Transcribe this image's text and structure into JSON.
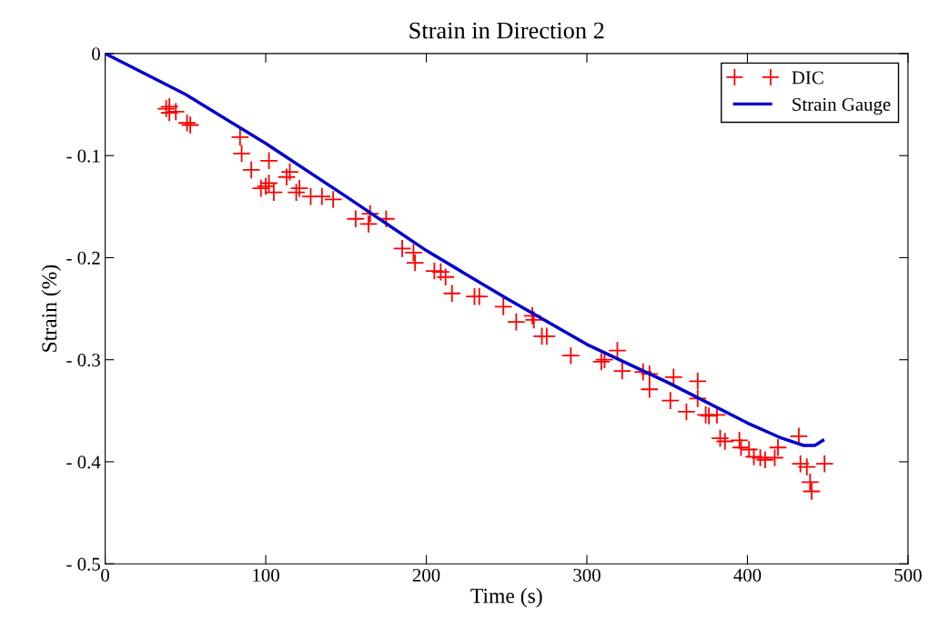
{
  "chart_data": {
    "type": "scatter",
    "title": "Strain in Direction 2",
    "xlabel": "Time (s)",
    "ylabel": "Strain (%)",
    "xlim": [
      0,
      500
    ],
    "xticks": [
      0,
      100,
      200,
      300,
      400,
      500
    ],
    "ylim": [
      -0.5,
      0
    ],
    "yticks": [
      {
        "value": -0.5,
        "label": "- 0.5"
      },
      {
        "value": -0.4,
        "label": "- 0.4"
      },
      {
        "value": -0.3,
        "label": "- 0.3"
      },
      {
        "value": -0.2,
        "label": "- 0.2"
      },
      {
        "value": -0.1,
        "label": "- 0.1"
      },
      0
    ],
    "grid": false,
    "legend": "top right",
    "series": [
      {
        "name": "DIC",
        "marker": "cross",
        "color": "#ff0000",
        "x": [
          38,
          40,
          40,
          44,
          51,
          53,
          84,
          85,
          91,
          97,
          100,
          102,
          102,
          105,
          113,
          115,
          119,
          121,
          128,
          135,
          142,
          156,
          164,
          165,
          175,
          185,
          192,
          193,
          205,
          209,
          212,
          216,
          230,
          233,
          248,
          256,
          266,
          267,
          272,
          275,
          290,
          309,
          311,
          319,
          322,
          335,
          339,
          339,
          352,
          354,
          362,
          369,
          369,
          374,
          376,
          381,
          383,
          386,
          395,
          396,
          401,
          404,
          408,
          411,
          417,
          419,
          432,
          433,
          437,
          439,
          440,
          448
        ],
        "values": [
          -0.054,
          -0.058,
          -0.052,
          -0.057,
          -0.068,
          -0.07,
          -0.082,
          -0.098,
          -0.114,
          -0.132,
          -0.13,
          -0.127,
          -0.105,
          -0.136,
          -0.121,
          -0.116,
          -0.136,
          -0.132,
          -0.14,
          -0.14,
          -0.143,
          -0.162,
          -0.167,
          -0.157,
          -0.162,
          -0.191,
          -0.195,
          -0.205,
          -0.213,
          -0.214,
          -0.219,
          -0.235,
          -0.238,
          -0.238,
          -0.248,
          -0.263,
          -0.257,
          -0.261,
          -0.277,
          -0.277,
          -0.296,
          -0.302,
          -0.3,
          -0.291,
          -0.311,
          -0.312,
          -0.314,
          -0.329,
          -0.34,
          -0.317,
          -0.351,
          -0.321,
          -0.338,
          -0.354,
          -0.355,
          -0.354,
          -0.377,
          -0.38,
          -0.379,
          -0.386,
          -0.388,
          -0.395,
          -0.396,
          -0.398,
          -0.396,
          -0.386,
          -0.375,
          -0.402,
          -0.405,
          -0.42,
          -0.429,
          -0.402
        ]
      },
      {
        "name": "Strain Gauge",
        "type": "line",
        "marker": "none",
        "line_style": "solid",
        "color": "#0000cc",
        "x": [
          0,
          50,
          100,
          150,
          200,
          250,
          300,
          350,
          400,
          420,
          435,
          442,
          447
        ],
        "values": [
          0,
          -0.04,
          -0.088,
          -0.14,
          -0.193,
          -0.24,
          -0.285,
          -0.322,
          -0.362,
          -0.376,
          -0.384,
          -0.384,
          -0.379
        ]
      }
    ]
  }
}
